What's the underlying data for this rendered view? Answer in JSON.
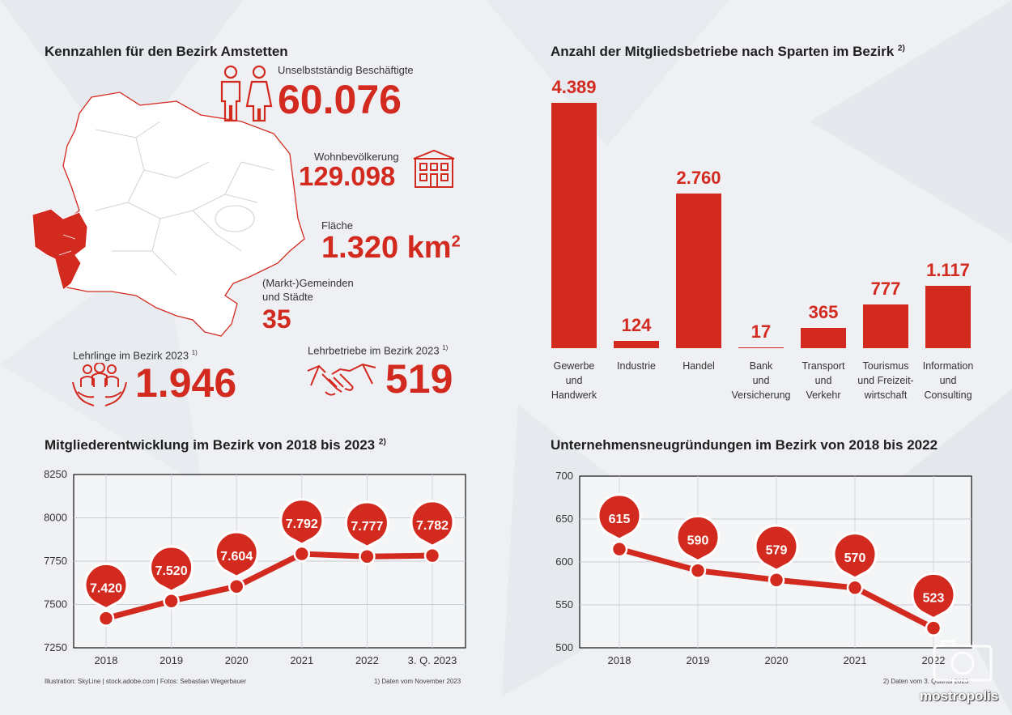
{
  "kennzahlen": {
    "title": "Kennzahlen für den Bezirk Amstetten",
    "beschaeftigte_label": "Unselbstständig Beschäftigte",
    "beschaeftigte_value": "60.076",
    "wohn_label": "Wohnbevölkerung",
    "wohn_value": "129.098",
    "flaeche_label": "Fläche",
    "flaeche_value": "1.320 km",
    "flaeche_sup": "2",
    "gemeinden_label1": "(Markt-)Gemeinden",
    "gemeinden_label2": "und Städte",
    "gemeinden_value": "35",
    "lehrlinge_label": "Lehrlinge im Bezirk 2023",
    "lehrlinge_sup": "1)",
    "lehrlinge_value": "1.946",
    "lehrbetriebe_label": "Lehrbetriebe im Bezirk 2023",
    "lehrbetriebe_sup": "1)",
    "lehrbetriebe_value": "519",
    "icons": [
      "people-icon",
      "house-icon",
      "group-hands-icon",
      "handshake-icon",
      "district-map-icon"
    ]
  },
  "colors": {
    "accent": "#d32a20",
    "text": "#1f1f1f"
  },
  "chart_data": [
    {
      "type": "bar",
      "title": "Anzahl der Mitgliedsbetriebe nach Sparten im Bezirk",
      "title_sup": "2)",
      "categories": [
        [
          "Gewerbe",
          "und",
          "Handwerk"
        ],
        [
          "Industrie"
        ],
        [
          "Handel"
        ],
        [
          "Bank",
          "und",
          "Versicherung"
        ],
        [
          "Transport",
          "und",
          "Verkehr"
        ],
        [
          "Tourismus",
          "und Freizeit-",
          "wirtschaft"
        ],
        [
          "Information",
          "und",
          "Consulting"
        ]
      ],
      "values": [
        4389,
        124,
        2760,
        17,
        365,
        777,
        1117
      ],
      "value_labels": [
        "4.389",
        "124",
        "2.760",
        "17",
        "365",
        "777",
        "1.117"
      ]
    },
    {
      "type": "line",
      "title": "Mitgliederentwicklung im Bezirk von 2018 bis 2023",
      "title_sup": "2)",
      "x": [
        "2018",
        "2019",
        "2020",
        "2021",
        "2022",
        "3. Q. 2023"
      ],
      "y": [
        7420,
        7520,
        7604,
        7792,
        7777,
        7782
      ],
      "value_labels": [
        "7.420",
        "7.520",
        "7.604",
        "7.792",
        "7.777",
        "7.782"
      ],
      "ylim": [
        7250,
        8250
      ],
      "yticks": [
        "7250",
        "7500",
        "7750",
        "8000",
        "8250"
      ],
      "grid": true
    },
    {
      "type": "line",
      "title": "Unternehmensneugründungen im Bezirk von 2018 bis 2022",
      "x": [
        "2018",
        "2019",
        "2020",
        "2021",
        "2022"
      ],
      "y": [
        615,
        590,
        579,
        570,
        523
      ],
      "value_labels": [
        "615",
        "590",
        "579",
        "570",
        "523"
      ],
      "ylim": [
        500,
        700
      ],
      "yticks": [
        "500",
        "550",
        "600",
        "650",
        "700"
      ],
      "grid": true
    }
  ],
  "footer": {
    "credits": "Illustration: SkyLine | stock.adobe.com | Fotos: Sebastian Wegerbauer",
    "note1": "1) Daten vom November 2023",
    "note2": "2) Daten vom 3. Quartal 2023"
  },
  "watermark": "mostropolis"
}
